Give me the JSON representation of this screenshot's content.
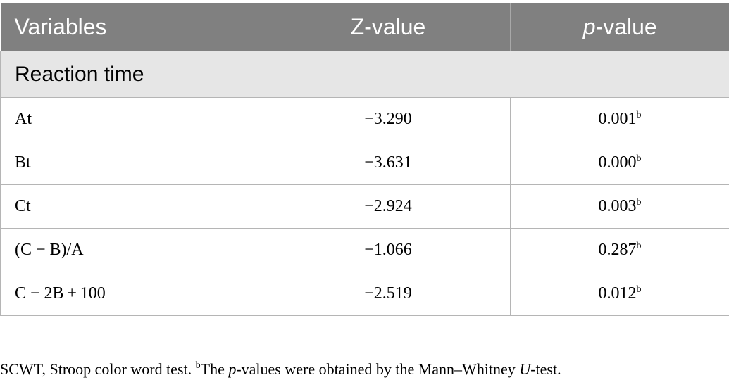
{
  "table": {
    "header": [
      "Variables",
      "Z-value",
      [
        "p",
        "-value"
      ]
    ],
    "section": "Reaction time",
    "rows": [
      [
        "At",
        "−3.290",
        [
          "0.001",
          "b"
        ]
      ],
      [
        "Bt",
        "−3.631",
        [
          "0.000",
          "b"
        ]
      ],
      [
        "Ct",
        "−2.924",
        [
          "0.003",
          "b"
        ]
      ],
      [
        "(C − B)/A",
        "−1.066",
        [
          "0.287",
          "b"
        ]
      ],
      [
        "C − 2B + 100",
        "−2.519",
        [
          "0.012",
          "b"
        ]
      ]
    ]
  },
  "footnote": [
    "SCWT, Stroop color word test. ",
    "b",
    "The ",
    "p",
    "-values were obtained by the Mann–Whitney ",
    "U",
    "-test."
  ]
}
